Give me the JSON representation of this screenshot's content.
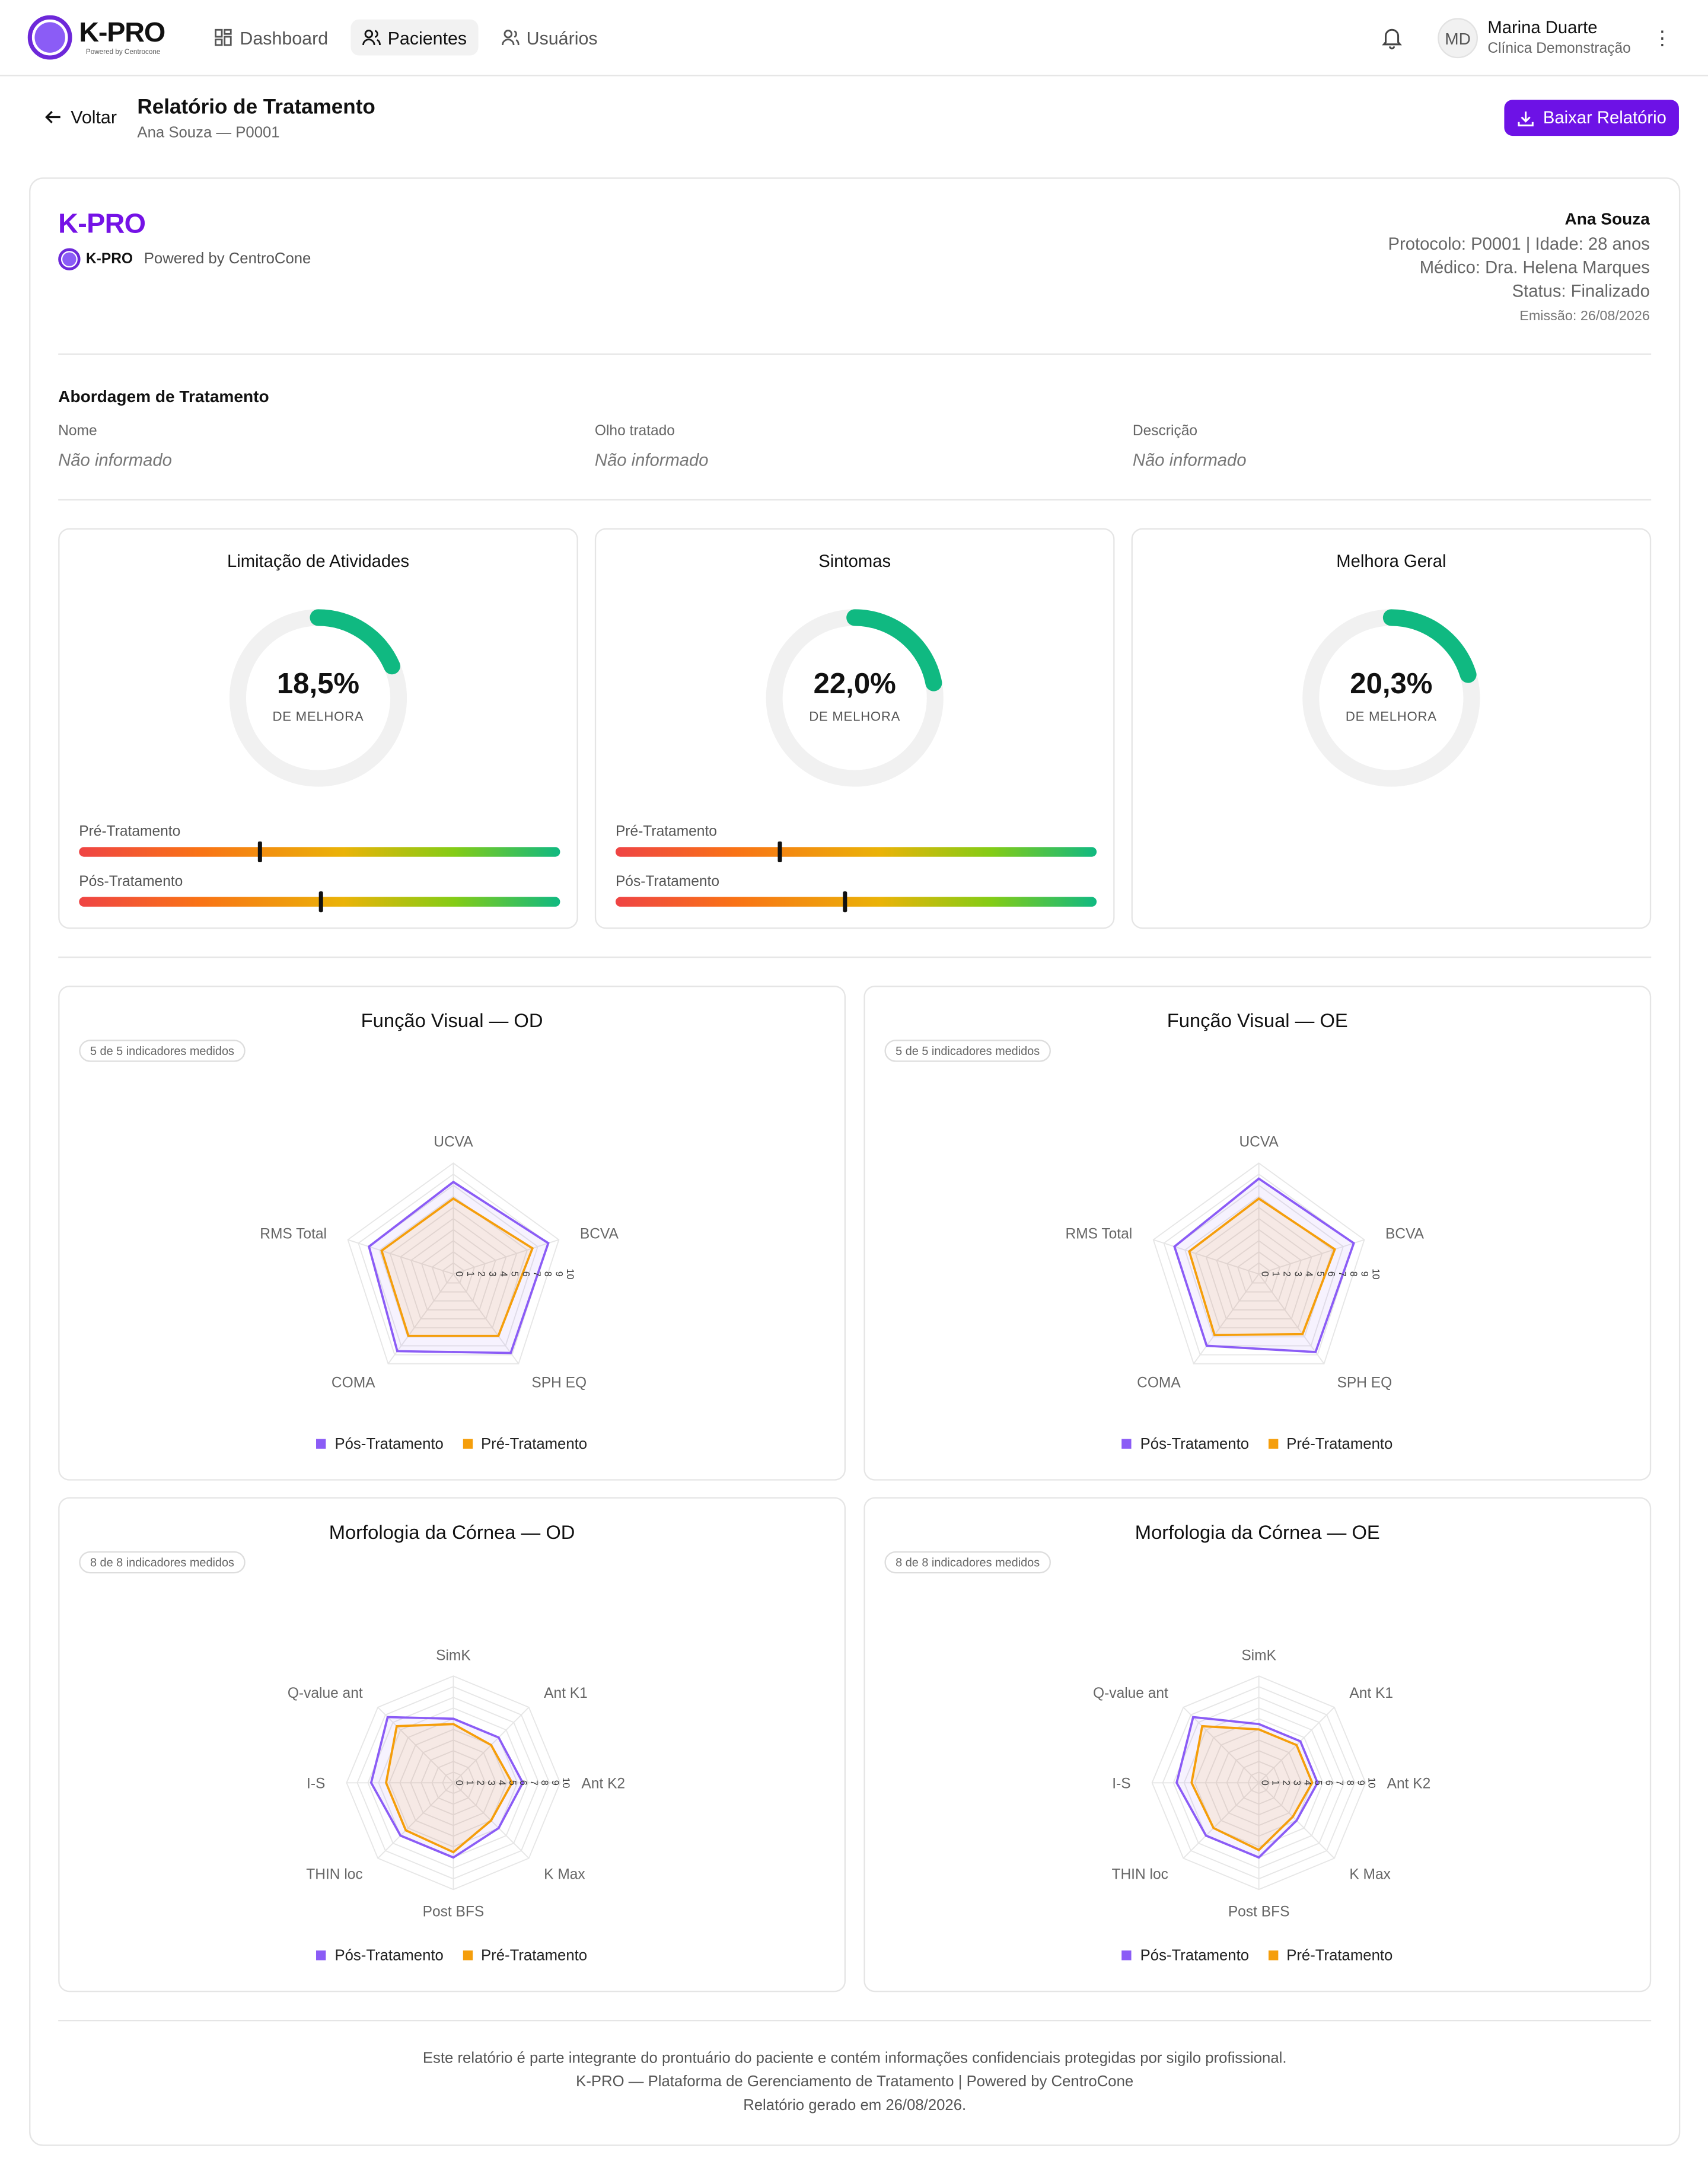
{
  "app": {
    "name": "K-PRO",
    "tagline": "Powered by Centrocone"
  },
  "nav": [
    {
      "label": "Dashboard",
      "icon": "grid-icon"
    },
    {
      "label": "Pacientes",
      "icon": "users-icon",
      "active": true
    },
    {
      "label": "Usuários",
      "icon": "user-icon"
    }
  ],
  "user": {
    "initials": "MD",
    "name": "Marina Duarte",
    "org": "Clínica Demonstração"
  },
  "page": {
    "back": "Voltar",
    "title": "Relatório de Tratamento",
    "subtitle": "Ana Souza — P0001",
    "download": "Baixar Relatório"
  },
  "report": {
    "brand": "K-PRO",
    "logo_text": "K-PRO",
    "powered": "Powered by CentroCone",
    "patient": "Ana Souza",
    "protocol_line": "Protocolo: P0001 | Idade: 28 anos",
    "doctor_line": "Médico: Dra. Helena Marques",
    "status_line": "Status: Finalizado",
    "emission_line": "Emissão: 26/08/2026",
    "approach": {
      "title": "Abordagem de Tratamento",
      "fields": [
        {
          "label": "Nome",
          "value": "Não informado"
        },
        {
          "label": "Olho tratado",
          "value": "Não informado"
        },
        {
          "label": "Descrição",
          "value": "Não informado"
        }
      ]
    },
    "gauges": [
      {
        "title": "Limitação de Atividades",
        "value_text": "18,5%",
        "fraction": 0.185,
        "label": "DE MELHORA",
        "pre_label": "Pré-Tratamento",
        "pos_label": "Pós-Tratamento",
        "pre": 0.375,
        "pos": 0.5
      },
      {
        "title": "Sintomas",
        "value_text": "22,0%",
        "fraction": 0.22,
        "label": "DE MELHORA",
        "pre_label": "Pré-Tratamento",
        "pos_label": "Pós-Tratamento",
        "pre": 0.34,
        "pos": 0.475
      },
      {
        "title": "Melhora Geral",
        "value_text": "20,3%",
        "fraction": 0.203,
        "label": "DE MELHORA"
      }
    ],
    "legend": {
      "pos": "Pós-Tratamento",
      "pre": "Pré-Tratamento"
    },
    "colors": {
      "pos": "#8b5cf6",
      "pre": "#f59e0b",
      "gauge": "#10b981",
      "accent": "#6d12e6"
    },
    "footer": [
      "Este relatório é parte integrante do prontuário do paciente e contém informações confidenciais protegidas por sigilo profissional.",
      "K-PRO — Plataforma de Gerenciamento de Tratamento | Powered by CentroCone",
      "Relatório gerado em 26/08/2026."
    ]
  },
  "chart_data": [
    {
      "type": "radar",
      "title": "Função Visual — OD",
      "badge": "5 de 5 indicadores medidos",
      "axes": [
        "UCVA",
        "BCVA",
        "SPH EQ",
        "COMA",
        "RMS Total"
      ],
      "ticks": [
        "0",
        "1",
        "2",
        "3",
        "4",
        "5",
        "6",
        "7",
        "8",
        "9",
        "10"
      ],
      "range": [
        0,
        10
      ],
      "series": [
        {
          "name": "Pós-Tratamento",
          "values": [
            8.3,
            9.0,
            8.8,
            8.6,
            8.0
          ]
        },
        {
          "name": "Pré-Tratamento",
          "values": [
            6.8,
            7.5,
            6.9,
            6.9,
            6.8
          ]
        }
      ]
    },
    {
      "type": "radar",
      "title": "Função Visual — OE",
      "badge": "5 de 5 indicadores medidos",
      "axes": [
        "UCVA",
        "BCVA",
        "SPH EQ",
        "COMA",
        "RMS Total"
      ],
      "ticks": [
        "0",
        "1",
        "2",
        "3",
        "4",
        "5",
        "6",
        "7",
        "8",
        "9",
        "10"
      ],
      "range": [
        0,
        10
      ],
      "series": [
        {
          "name": "Pós-Tratamento",
          "values": [
            8.6,
            9.0,
            8.7,
            8.0,
            8.0
          ]
        },
        {
          "name": "Pré-Tratamento",
          "values": [
            6.8,
            7.2,
            6.7,
            6.8,
            6.6
          ]
        }
      ]
    },
    {
      "type": "radar",
      "title": "Morfologia da Córnea — OD",
      "badge": "8 de 8 indicadores medidos",
      "axes": [
        "SimK",
        "Ant K1",
        "Ant K2",
        "K Max",
        "Post BFS",
        "THIN loc",
        "I-S",
        "Q-value ant"
      ],
      "ticks": [
        "0",
        "1",
        "2",
        "3",
        "4",
        "5",
        "6",
        "7",
        "8",
        "9",
        "10"
      ],
      "range": [
        0,
        10
      ],
      "series": [
        {
          "name": "Pós-Tratamento",
          "values": [
            6.0,
            6.0,
            6.5,
            6.0,
            7.0,
            7.0,
            7.7,
            8.7
          ]
        },
        {
          "name": "Pré-Tratamento",
          "values": [
            5.5,
            5.0,
            5.5,
            5.0,
            6.5,
            6.3,
            6.3,
            7.5
          ]
        }
      ]
    },
    {
      "type": "radar",
      "title": "Morfologia da Córnea — OE",
      "badge": "8 de 8 indicadores medidos",
      "axes": [
        "SimK",
        "Ant K1",
        "Ant K2",
        "K Max",
        "Post BFS",
        "THIN loc",
        "I-S",
        "Q-value ant"
      ],
      "ticks": [
        "0",
        "1",
        "2",
        "3",
        "4",
        "5",
        "6",
        "7",
        "8",
        "9",
        "10"
      ],
      "range": [
        0,
        10
      ],
      "series": [
        {
          "name": "Pós-Tratamento",
          "values": [
            5.5,
            5.5,
            5.5,
            5.0,
            7.0,
            7.0,
            7.7,
            8.7
          ]
        },
        {
          "name": "Pré-Tratamento",
          "values": [
            5.0,
            5.0,
            5.0,
            4.5,
            6.3,
            6.0,
            6.3,
            7.5
          ]
        }
      ]
    }
  ]
}
